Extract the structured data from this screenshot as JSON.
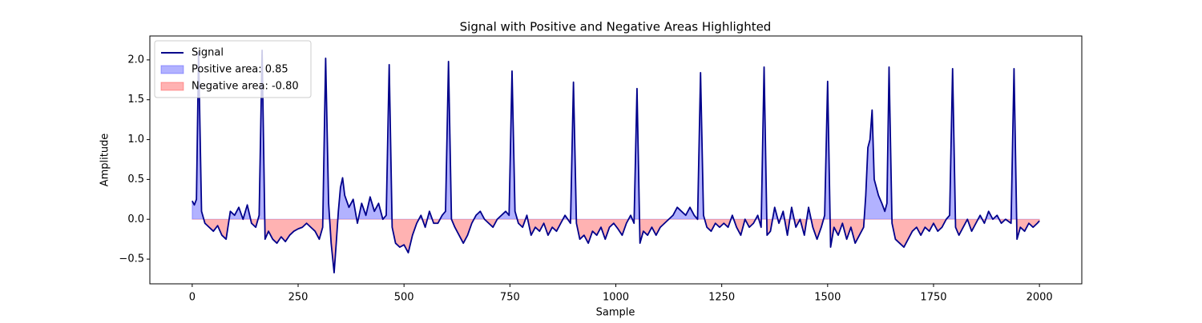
{
  "chart_data": {
    "type": "line",
    "title": "Signal with Positive and Negative Areas Highlighted",
    "xlabel": "Sample",
    "ylabel": "Amplitude",
    "x": [
      0,
      5,
      10,
      15,
      22,
      30,
      40,
      50,
      60,
      70,
      80,
      90,
      100,
      110,
      120,
      130,
      140,
      150,
      158,
      165,
      172,
      180,
      190,
      200,
      210,
      220,
      230,
      240,
      250,
      260,
      270,
      280,
      290,
      300,
      308,
      315,
      322,
      328,
      335,
      340,
      345,
      350,
      355,
      360,
      370,
      380,
      390,
      400,
      410,
      420,
      430,
      440,
      450,
      458,
      465,
      472,
      480,
      490,
      500,
      510,
      520,
      530,
      540,
      550,
      560,
      570,
      580,
      590,
      598,
      605,
      612,
      620,
      630,
      640,
      650,
      660,
      670,
      680,
      690,
      700,
      710,
      720,
      730,
      740,
      748,
      755,
      762,
      770,
      780,
      790,
      800,
      810,
      820,
      830,
      840,
      850,
      860,
      870,
      880,
      893,
      900,
      907,
      915,
      925,
      935,
      945,
      955,
      965,
      975,
      985,
      995,
      1005,
      1015,
      1025,
      1035,
      1043,
      1050,
      1057,
      1065,
      1075,
      1085,
      1095,
      1105,
      1115,
      1125,
      1135,
      1145,
      1155,
      1165,
      1175,
      1185,
      1193,
      1200,
      1207,
      1215,
      1225,
      1235,
      1245,
      1255,
      1265,
      1275,
      1285,
      1295,
      1305,
      1315,
      1325,
      1335,
      1343,
      1350,
      1357,
      1365,
      1375,
      1385,
      1395,
      1405,
      1415,
      1425,
      1435,
      1445,
      1455,
      1465,
      1475,
      1485,
      1493,
      1500,
      1507,
      1515,
      1525,
      1535,
      1545,
      1555,
      1565,
      1575,
      1585,
      1590,
      1595,
      1600,
      1605,
      1610,
      1615,
      1620,
      1628,
      1635,
      1640,
      1645,
      1652,
      1660,
      1670,
      1680,
      1690,
      1700,
      1710,
      1720,
      1730,
      1740,
      1750,
      1760,
      1770,
      1780,
      1788,
      1795,
      1802,
      1810,
      1820,
      1830,
      1840,
      1850,
      1860,
      1870,
      1880,
      1890,
      1900,
      1910,
      1920,
      1933,
      1940,
      1947,
      1955,
      1965,
      1975,
      1985,
      1995,
      2000
    ],
    "series": [
      {
        "name": "Signal",
        "color": "#00008b",
        "values": [
          0.23,
          0.18,
          0.25,
          2.1,
          0.1,
          -0.05,
          -0.1,
          -0.15,
          -0.08,
          -0.2,
          -0.25,
          0.1,
          0.05,
          0.15,
          0.0,
          0.18,
          -0.05,
          -0.1,
          0.05,
          2.12,
          -0.25,
          -0.15,
          -0.25,
          -0.3,
          -0.22,
          -0.28,
          -0.2,
          -0.15,
          -0.12,
          -0.1,
          -0.05,
          -0.1,
          -0.15,
          -0.25,
          -0.1,
          2.02,
          0.2,
          -0.3,
          -0.67,
          -0.3,
          0.1,
          0.4,
          0.52,
          0.3,
          0.15,
          0.25,
          -0.05,
          0.2,
          0.05,
          0.28,
          0.1,
          0.2,
          0.0,
          0.05,
          1.94,
          -0.1,
          -0.3,
          -0.35,
          -0.32,
          -0.42,
          -0.2,
          -0.05,
          0.05,
          -0.1,
          0.1,
          -0.05,
          -0.05,
          0.05,
          0.1,
          1.98,
          0.0,
          -0.1,
          -0.2,
          -0.3,
          -0.2,
          -0.05,
          0.05,
          0.1,
          0.0,
          -0.05,
          -0.1,
          0.0,
          0.05,
          0.1,
          0.05,
          1.86,
          0.1,
          -0.05,
          -0.1,
          0.05,
          -0.2,
          -0.1,
          -0.15,
          -0.05,
          -0.2,
          -0.1,
          -0.15,
          -0.05,
          0.05,
          -0.05,
          1.72,
          -0.05,
          -0.25,
          -0.2,
          -0.3,
          -0.15,
          -0.2,
          -0.1,
          -0.25,
          -0.1,
          -0.05,
          -0.12,
          -0.2,
          -0.05,
          0.05,
          -0.05,
          1.64,
          -0.3,
          -0.15,
          -0.2,
          -0.1,
          -0.2,
          -0.1,
          -0.05,
          0.0,
          0.05,
          0.15,
          0.1,
          0.05,
          0.15,
          0.05,
          0.0,
          1.84,
          0.05,
          -0.1,
          -0.15,
          -0.05,
          -0.1,
          -0.05,
          -0.1,
          0.05,
          -0.1,
          -0.2,
          0.0,
          -0.1,
          -0.05,
          0.05,
          -0.1,
          1.91,
          -0.2,
          -0.15,
          0.15,
          -0.05,
          0.1,
          -0.2,
          0.15,
          -0.1,
          0.0,
          -0.2,
          0.15,
          -0.1,
          -0.25,
          -0.1,
          0.05,
          1.73,
          -0.35,
          -0.1,
          -0.2,
          -0.05,
          -0.25,
          -0.1,
          -0.3,
          -0.2,
          -0.1,
          0.3,
          0.9,
          1.0,
          1.37,
          0.5,
          0.4,
          0.3,
          0.2,
          0.1,
          0.2,
          1.91,
          -0.05,
          -0.25,
          -0.3,
          -0.35,
          -0.25,
          -0.15,
          -0.1,
          -0.2,
          -0.1,
          -0.15,
          -0.05,
          -0.15,
          -0.1,
          0.0,
          0.05,
          1.89,
          -0.1,
          -0.2,
          -0.1,
          0.0,
          -0.15,
          -0.05,
          0.05,
          -0.05,
          0.1,
          0.0,
          0.05,
          -0.05,
          0.0,
          -0.05,
          1.89,
          -0.25,
          -0.1,
          -0.15,
          -0.05,
          -0.1,
          -0.05,
          -0.02
        ]
      }
    ],
    "fills": [
      {
        "name": "Positive area: 0.85",
        "color": "#0000ff",
        "side": "above"
      },
      {
        "name": "Negative area: -0.80",
        "color": "#ff0000",
        "side": "below"
      }
    ],
    "xlim": [
      -100,
      2100
    ],
    "ylim": [
      -0.81,
      2.3
    ],
    "xticks": [
      0,
      250,
      500,
      750,
      1000,
      1250,
      1500,
      1750,
      2000
    ],
    "yticks": [
      {
        "value": -0.5,
        "label": "−0.5"
      },
      {
        "value": 0,
        "label": "0.0"
      },
      0.5,
      {
        "value": 1,
        "label": "1.0"
      },
      1.5,
      {
        "value": 2,
        "label": "2.0"
      }
    ],
    "legend": "upper left"
  }
}
